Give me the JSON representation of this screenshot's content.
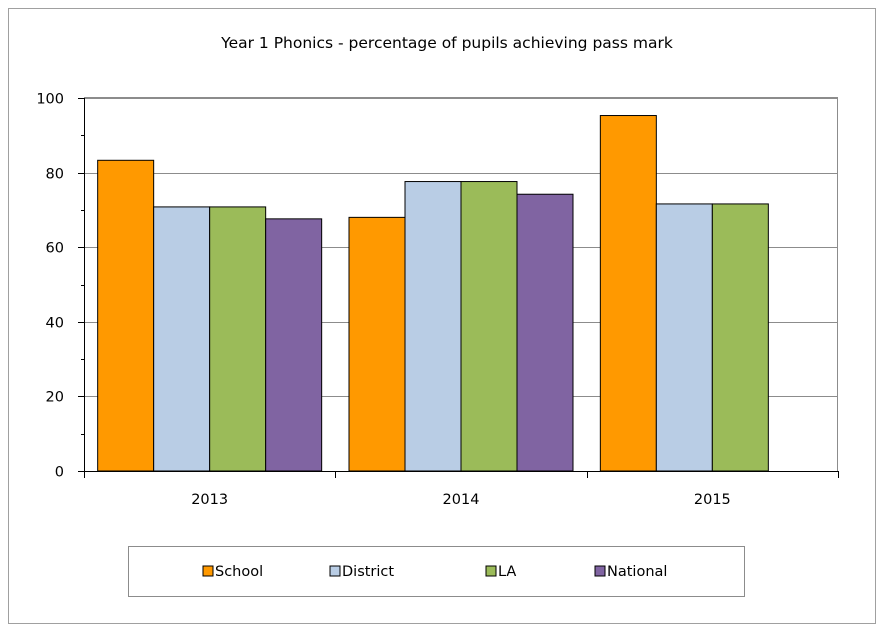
{
  "chart_data": {
    "type": "bar",
    "title": "Year 1 Phonics - percentage of pupils achieving pass mark",
    "xlabel": "",
    "ylabel": "",
    "categories": [
      "2013",
      "2014",
      "2015"
    ],
    "series": [
      {
        "name": "School",
        "color": "#FF9900",
        "values": [
          83.3,
          68,
          95.3
        ]
      },
      {
        "name": "District",
        "color": "#B9CDE5",
        "values": [
          70.8,
          77.6,
          71.6
        ]
      },
      {
        "name": "LA",
        "color": "#9BBB59",
        "values": [
          70.8,
          77.6,
          71.6
        ]
      },
      {
        "name": "National",
        "color": "#8064A2",
        "values": [
          67.6,
          74.2,
          null
        ]
      }
    ],
    "ylim": [
      0,
      100
    ],
    "yticks": [
      0,
      20,
      40,
      60,
      80,
      100
    ],
    "ytick_labels": [
      "0",
      "20",
      "40",
      "60",
      "80",
      "100"
    ],
    "grid": true,
    "legend_position": "bottom"
  }
}
